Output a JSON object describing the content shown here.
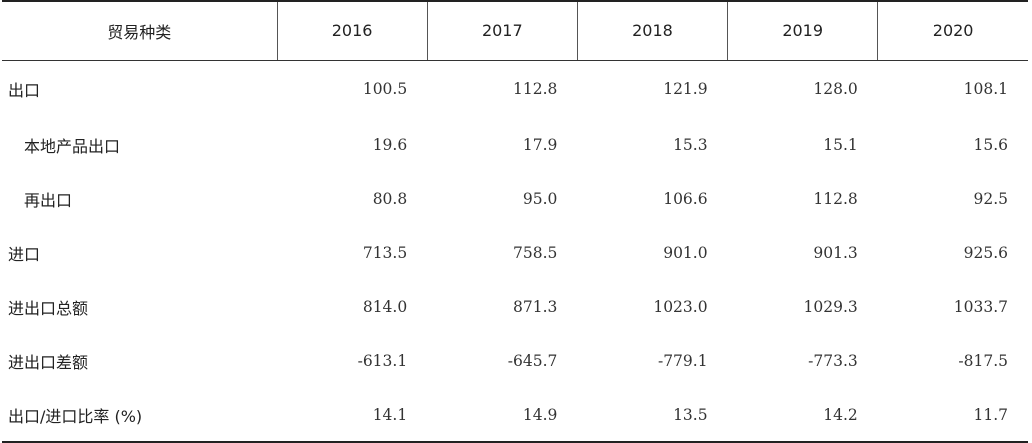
{
  "header": {
    "label_column": "贸易种类",
    "years": [
      "2016",
      "2017",
      "2018",
      "2019",
      "2020"
    ]
  },
  "rows": [
    {
      "label": "出口",
      "indent": false,
      "values": [
        "100.5",
        "112.8",
        "121.9",
        "128.0",
        "108.1"
      ]
    },
    {
      "label": "本地产品出口",
      "indent": true,
      "values": [
        "19.6",
        "17.9",
        "15.3",
        "15.1",
        "15.6"
      ]
    },
    {
      "label": "再出口",
      "indent": true,
      "values": [
        "80.8",
        "95.0",
        "106.6",
        "112.8",
        "92.5"
      ]
    },
    {
      "label": "进口",
      "indent": false,
      "values": [
        "713.5",
        "758.5",
        "901.0",
        "901.3",
        "925.6"
      ]
    },
    {
      "label": "进出口总额",
      "indent": false,
      "values": [
        "814.0",
        "871.3",
        "1023.0",
        "1029.3",
        "1033.7"
      ]
    },
    {
      "label": "进出口差额",
      "indent": false,
      "values": [
        "-613.1",
        "-645.7",
        "-779.1",
        "-773.3",
        "-817.5"
      ]
    },
    {
      "label": "出口/进口比率 (%)",
      "indent": false,
      "values": [
        "14.1",
        "14.9",
        "13.5",
        "14.2",
        "11.7"
      ]
    }
  ]
}
